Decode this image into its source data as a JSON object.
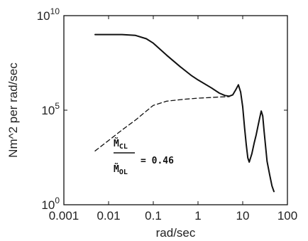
{
  "chart_data": {
    "type": "line",
    "xlabel": "rad/sec",
    "ylabel": "Nm^2 per rad/sec",
    "x_scale": "log",
    "y_scale": "log",
    "xlim": [
      0.001,
      100
    ],
    "ylim": [
      1,
      10000000000
    ],
    "x_ticks": [
      {
        "value": 0.001,
        "label": "0.001"
      },
      {
        "value": 0.01,
        "label": "0.01"
      },
      {
        "value": 0.1,
        "label": "0.1"
      },
      {
        "value": 1,
        "label": "1"
      },
      {
        "value": 10,
        "label": "10"
      },
      {
        "value": 100,
        "label": "100"
      }
    ],
    "y_ticks": [
      {
        "value": 1,
        "base": "10",
        "exp": "0"
      },
      {
        "value": 100000,
        "base": "10",
        "exp": "5"
      },
      {
        "value": 10000000000,
        "base": "10",
        "exp": "10"
      }
    ],
    "grid": false,
    "annotation": {
      "numerator": "M̃",
      "numerator_sub": "CL",
      "denominator": "M̃",
      "denominator_sub": "OL",
      "value_text": "= 0.46"
    },
    "series": [
      {
        "style": "solid",
        "color": "#111111",
        "points": [
          [
            0.005,
            1000000000
          ],
          [
            0.01,
            1000000000
          ],
          [
            0.02,
            1000000000
          ],
          [
            0.04,
            900000000
          ],
          [
            0.07,
            600000000
          ],
          [
            0.1,
            350000000
          ],
          [
            0.2,
            80000000
          ],
          [
            0.4,
            20000000
          ],
          [
            0.7,
            7000000
          ],
          [
            1,
            4000000
          ],
          [
            2,
            1500000
          ],
          [
            3,
            800000
          ],
          [
            4,
            600000
          ],
          [
            5,
            550000
          ],
          [
            6,
            650000
          ],
          [
            7,
            1200000
          ],
          [
            8,
            2200000
          ],
          [
            9,
            900000
          ],
          [
            10,
            150000
          ],
          [
            11,
            12000
          ],
          [
            12,
            1500
          ],
          [
            13,
            300
          ],
          [
            14,
            180
          ],
          [
            16,
            500
          ],
          [
            18,
            1800
          ],
          [
            20,
            5000
          ],
          [
            22,
            15000
          ],
          [
            24,
            40000
          ],
          [
            26,
            90000
          ],
          [
            28,
            50000
          ],
          [
            30,
            8000
          ],
          [
            35,
            200
          ],
          [
            40,
            40
          ],
          [
            45,
            10
          ],
          [
            50,
            5
          ]
        ]
      },
      {
        "style": "dashed",
        "color": "#111111",
        "points": [
          [
            0.005,
            700
          ],
          [
            0.01,
            2500
          ],
          [
            0.02,
            9000
          ],
          [
            0.04,
            30000
          ],
          [
            0.07,
            90000
          ],
          [
            0.1,
            180000
          ],
          [
            0.2,
            300000
          ],
          [
            0.5,
            380000
          ],
          [
            1,
            430000
          ],
          [
            2,
            470000
          ],
          [
            3,
            500000
          ],
          [
            5,
            520000
          ]
        ]
      }
    ]
  }
}
